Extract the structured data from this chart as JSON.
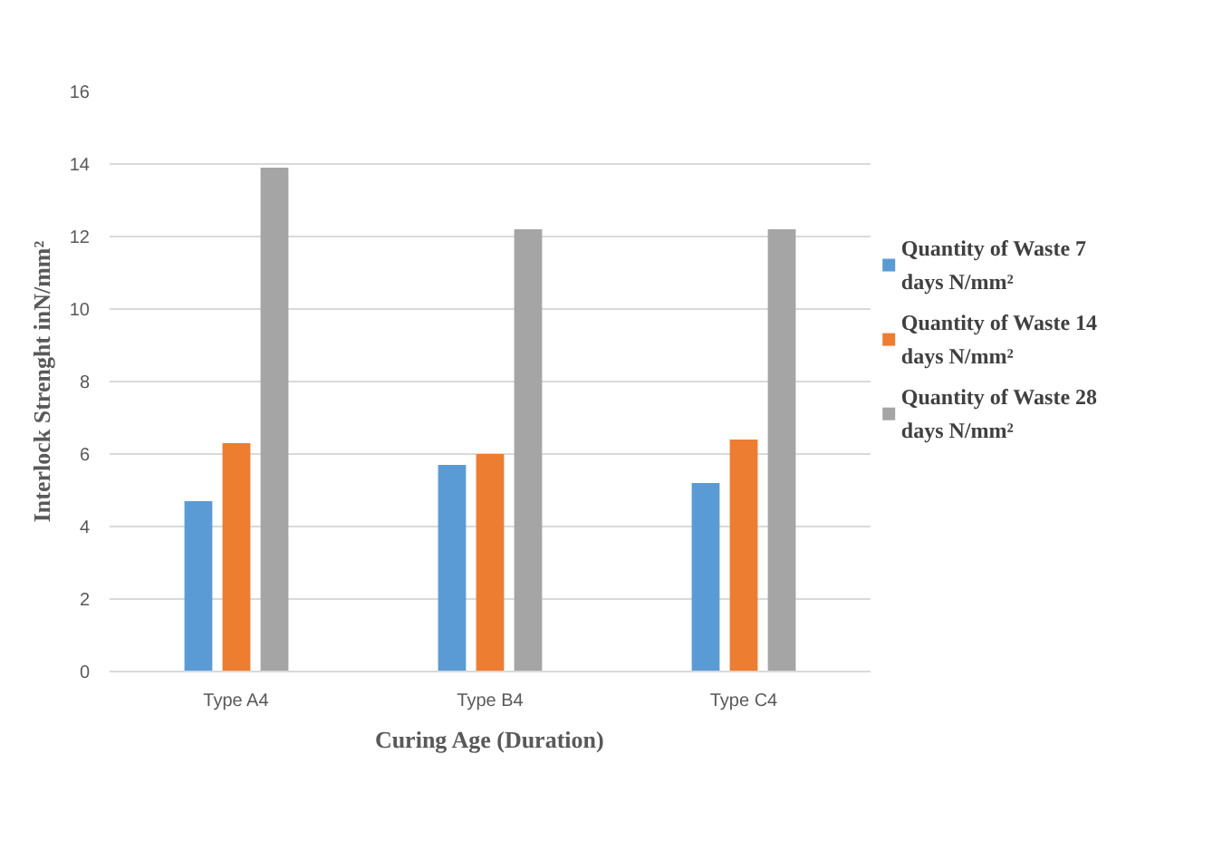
{
  "chart_data": {
    "type": "bar",
    "xlabel": "Curing Age (Duration)",
    "ylabel": "Interlock Strenght inN/mm²",
    "categories": [
      "Type A4",
      "Type B4",
      "Type C4"
    ],
    "series": [
      {
        "name": "Quantity of Waste 7 days N/mm²",
        "color": "#5b9bd5",
        "values": [
          4.7,
          5.7,
          5.2
        ]
      },
      {
        "name": "Quantity of Waste 14 days N/mm²",
        "color": "#ed7d31",
        "values": [
          6.3,
          6.0,
          6.4
        ]
      },
      {
        "name": "Quantity of Waste 28 days N/mm²",
        "color": "#a5a5a5",
        "values": [
          13.9,
          12.2,
          12.2
        ]
      }
    ],
    "ylim": [
      0,
      16
    ],
    "yticks": [
      0,
      2,
      4,
      6,
      8,
      10,
      12,
      14,
      16
    ],
    "grid": "y",
    "legend": "right"
  }
}
